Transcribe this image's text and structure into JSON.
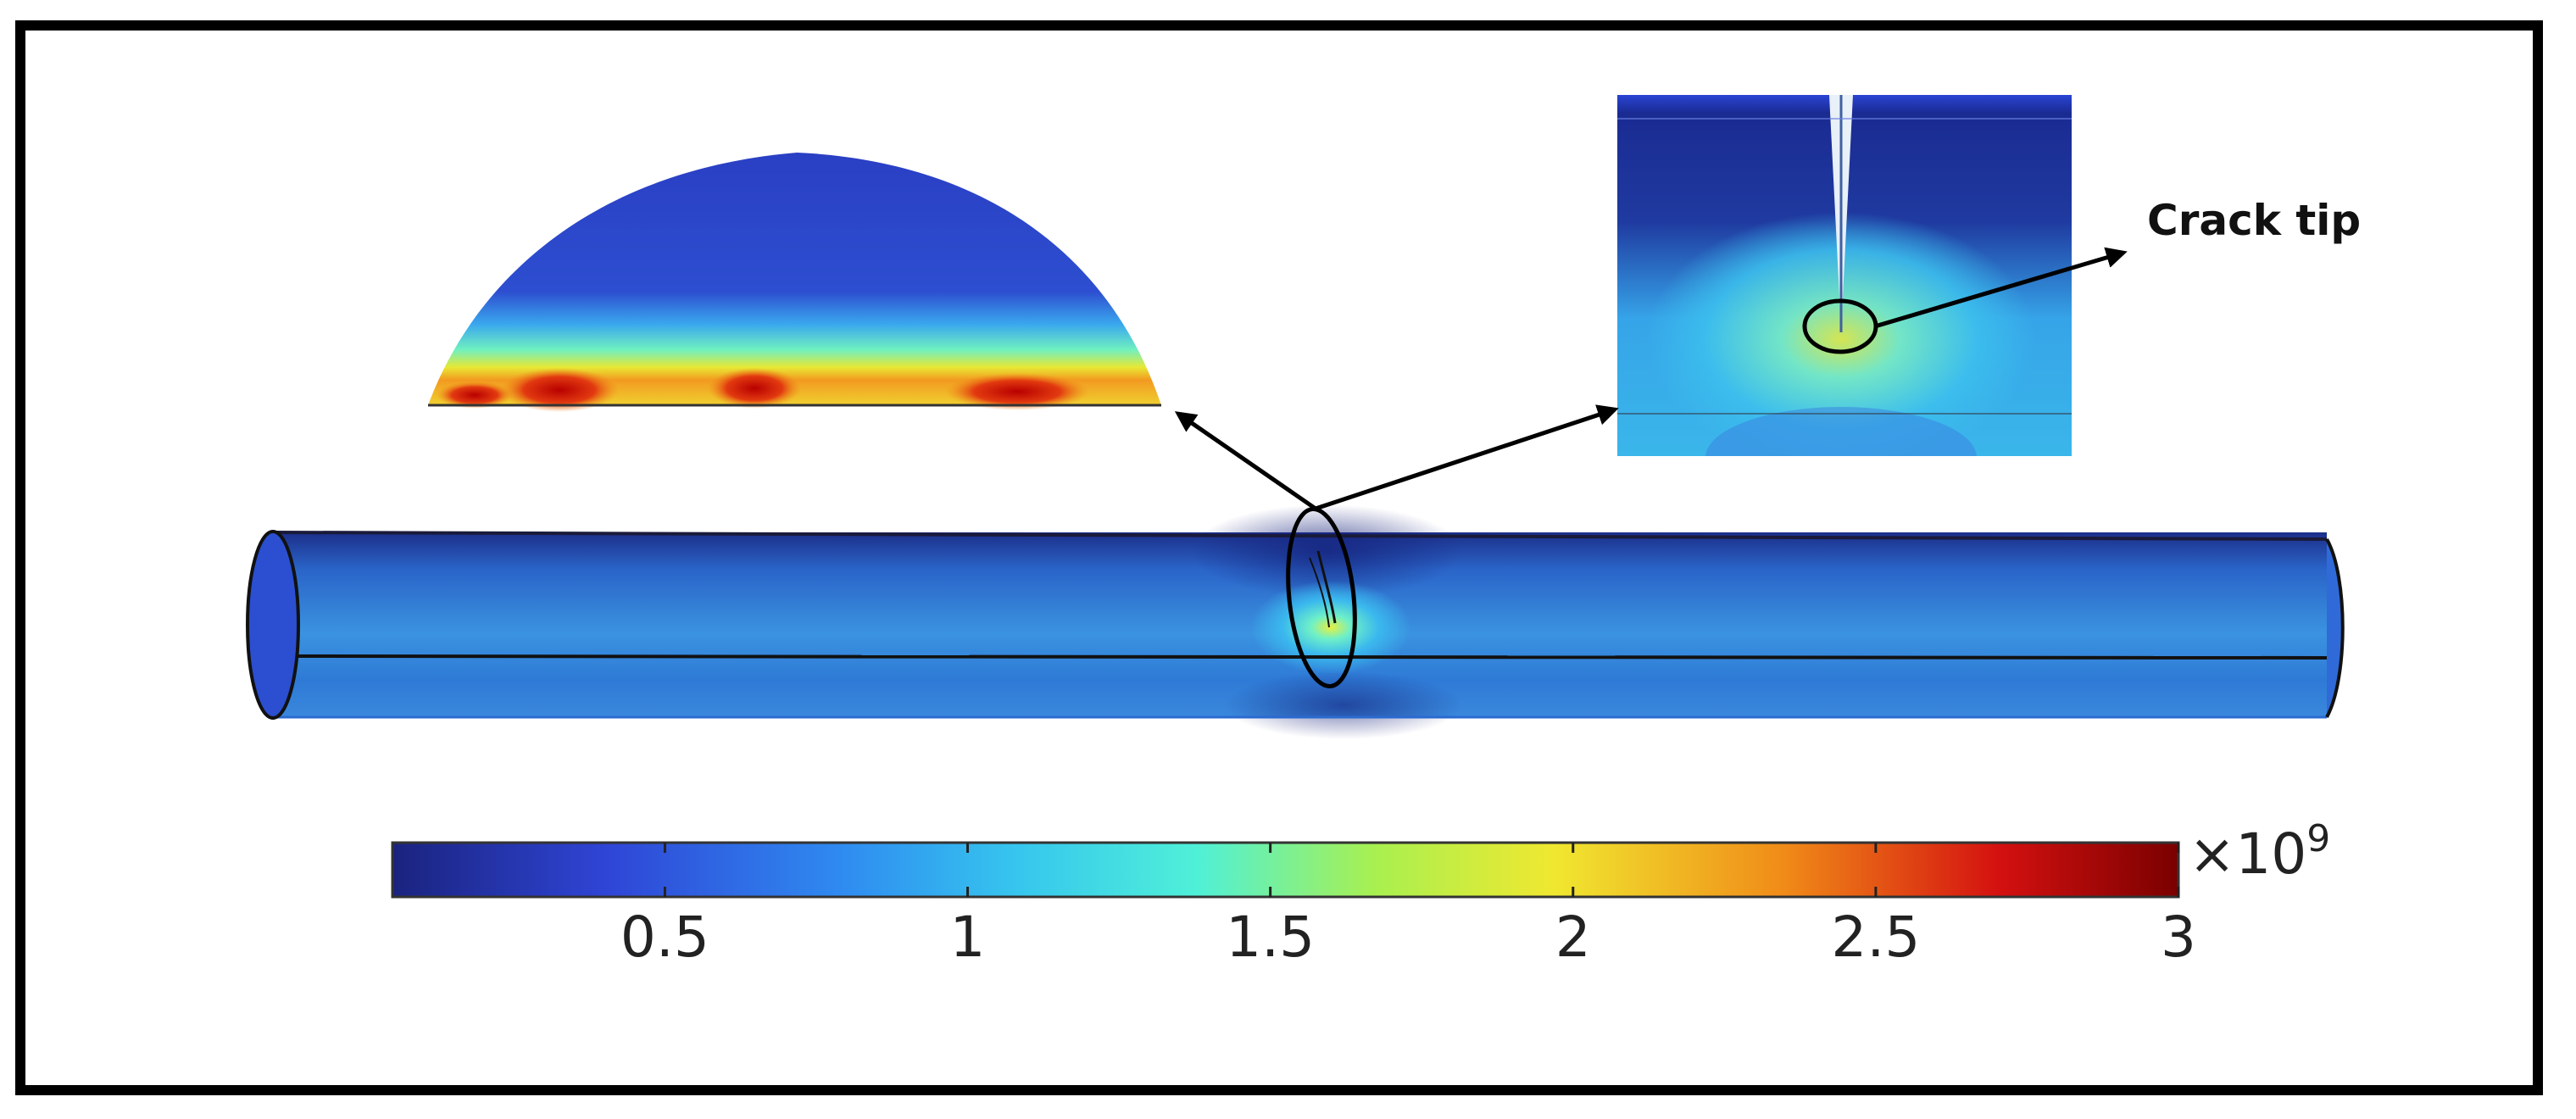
{
  "annotations": {
    "crack_tip_label": "Crack tip"
  },
  "colorbar": {
    "colormap": "jet",
    "range": [
      0.05,
      3
    ],
    "ticks": [
      {
        "value": 0.5,
        "label": "0.5"
      },
      {
        "value": 1,
        "label": "1"
      },
      {
        "value": 1.5,
        "label": "1.5"
      },
      {
        "value": 2,
        "label": "2"
      },
      {
        "value": 2.5,
        "label": "2.5"
      },
      {
        "value": 3,
        "label": "3"
      }
    ],
    "multiplier_base": "×10",
    "multiplier_exponent": "9"
  },
  "colors": {
    "low": "#1a237e",
    "mid": "#2fb0e6",
    "high": "#7a0000",
    "frame": "#000000"
  }
}
